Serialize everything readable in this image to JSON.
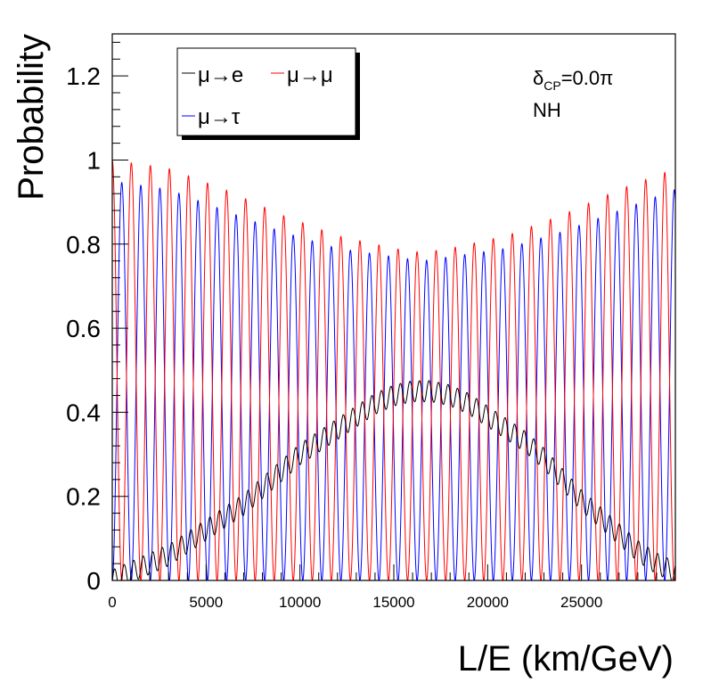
{
  "chart_data": {
    "type": "line",
    "title": "",
    "xlabel": "L/E (km/GeV)",
    "ylabel": "Probability",
    "xlim": [
      0,
      30000
    ],
    "ylim": [
      0,
      1.3
    ],
    "x_ticks": [
      0,
      5000,
      10000,
      15000,
      20000,
      25000
    ],
    "y_ticks": [
      0,
      0.2,
      0.4,
      0.6,
      0.8,
      1,
      1.2
    ],
    "x_tick_labels": [
      "0",
      "5000",
      "10000",
      "15000",
      "20000",
      "25000"
    ],
    "y_tick_labels": [
      "0",
      "0.2",
      "0.4",
      "0.6",
      "0.8",
      "1",
      "1.2"
    ],
    "grid": false,
    "legend_placement": "top-left",
    "annotations": {
      "delta_main": "δ",
      "delta_sub": "CP",
      "delta_value": "=0.0π",
      "hierarchy": "NH"
    },
    "oscillation_period_km_per_gev": 1015,
    "series": [
      {
        "name": "μ→e",
        "color": "#000000",
        "envelope_x": [
          0,
          1000,
          2000,
          3000,
          4000,
          5000,
          6000,
          7000,
          8000,
          9000,
          10000,
          11000,
          12000,
          13000,
          14000,
          15000,
          16000,
          17000,
          18000,
          19000,
          20000,
          21000,
          22000,
          23000,
          24000,
          25000,
          26000,
          27000,
          28000,
          29000,
          30000
        ],
        "envelope_y": [
          0.0,
          0.02,
          0.04,
          0.06,
          0.09,
          0.12,
          0.15,
          0.18,
          0.22,
          0.26,
          0.3,
          0.33,
          0.36,
          0.39,
          0.42,
          0.44,
          0.45,
          0.45,
          0.44,
          0.42,
          0.39,
          0.36,
          0.33,
          0.29,
          0.24,
          0.19,
          0.15,
          0.11,
          0.07,
          0.04,
          0.02
        ],
        "ripple_amplitude": 0.025
      },
      {
        "name": "μ→μ",
        "color": "#ff0000",
        "peak_x": [
          0,
          3000,
          6000,
          9000,
          12000,
          15000,
          16500,
          18000,
          21000,
          24000,
          27000,
          30000
        ],
        "peak_y": [
          1.0,
          0.98,
          0.93,
          0.87,
          0.82,
          0.79,
          0.78,
          0.79,
          0.82,
          0.87,
          0.93,
          0.98
        ]
      },
      {
        "name": "μ→τ",
        "color": "#0000ff",
        "peak_x": [
          0,
          3000,
          6000,
          9000,
          12000,
          15000,
          16500,
          18000,
          21000,
          24000,
          27000,
          30000
        ],
        "peak_y": [
          0.95,
          0.93,
          0.88,
          0.83,
          0.79,
          0.77,
          0.76,
          0.77,
          0.79,
          0.83,
          0.88,
          0.93
        ]
      }
    ]
  }
}
